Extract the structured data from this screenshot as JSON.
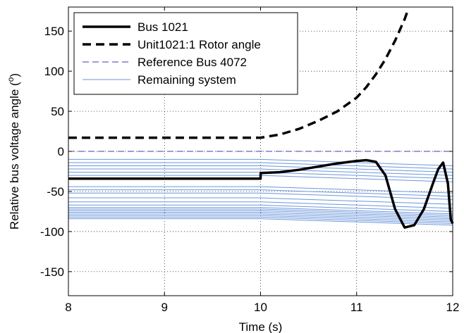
{
  "chart_data": {
    "type": "line",
    "xlabel": "Time (s)",
    "ylabel_main": "Relative bus voltage angle (",
    "ylabel_sup": "o",
    "ylabel_close": ")",
    "xlim": [
      8,
      12
    ],
    "ylim": [
      -180,
      180
    ],
    "xticks": [
      8,
      9,
      10,
      11,
      12
    ],
    "yticks": [
      -150,
      -100,
      -50,
      0,
      50,
      100,
      150
    ],
    "grid": true,
    "legend_position": "top-left",
    "colors": {
      "bus": "#000000",
      "rotor": "#000000",
      "reference": "#3b3bb0",
      "remaining": "#6a96dc"
    },
    "series": [
      {
        "name": "Bus 1021",
        "style": "solid-thick",
        "x": [
          8,
          10,
          10.001,
          10.2,
          10.4,
          10.6,
          10.8,
          11.0,
          11.1,
          11.2,
          11.3,
          11.4,
          11.5,
          11.6,
          11.7,
          11.8,
          11.85,
          11.9,
          11.95,
          11.98,
          12.0
        ],
        "y": [
          -34,
          -34,
          -27,
          -26,
          -23,
          -19,
          -15,
          -12,
          -11,
          -13,
          -30,
          -72,
          -95,
          -92,
          -72,
          -38,
          -22,
          -14,
          -40,
          -85,
          -90
        ]
      },
      {
        "name": "Unit1021:1 Rotor angle",
        "style": "dashed-thick",
        "x": [
          8,
          10,
          10.2,
          10.4,
          10.6,
          10.8,
          11.0,
          11.1,
          11.2,
          11.3,
          11.4,
          11.5,
          11.53
        ],
        "y": [
          17,
          17,
          21,
          28,
          38,
          50,
          67,
          80,
          96,
          115,
          138,
          165,
          175
        ]
      },
      {
        "name": "Reference Bus 4072",
        "style": "dashed-thin",
        "x": [
          8,
          12
        ],
        "y": [
          0,
          0
        ]
      },
      {
        "name": "Remaining system",
        "style": "solid-thin",
        "x": [
          8,
          10,
          10.5,
          11,
          11.5,
          12
        ],
        "baselines": [
          -10,
          -14,
          -18,
          -22,
          -26,
          -30,
          -44,
          -48,
          -52,
          -58,
          -63,
          -67,
          -70,
          -72,
          -74,
          -76,
          -78,
          -80,
          -82,
          -84
        ],
        "offsets": [
          0,
          0,
          -2,
          -4,
          -6,
          -8
        ]
      }
    ]
  }
}
